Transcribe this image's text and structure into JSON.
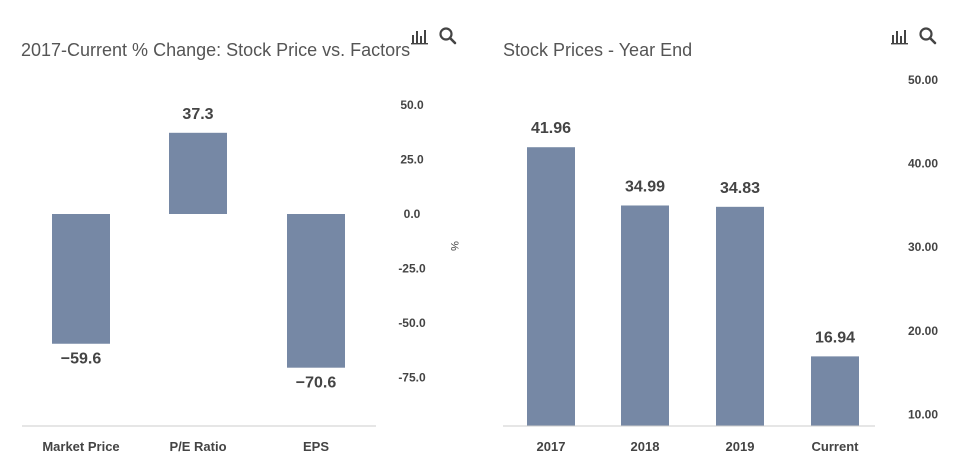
{
  "colors": {
    "bar": "#7688a5",
    "title": "#555555",
    "tick": "#444444",
    "axis": "#cccccc",
    "label": "#444444"
  },
  "toolbar": {
    "left": [
      "bar-chart-icon",
      "search-icon"
    ],
    "right": [
      "bar-chart-icon",
      "search-icon"
    ]
  },
  "chart_data": [
    {
      "type": "bar",
      "title": "2017-Current % Change: Stock Price vs. Factors",
      "categories": [
        "Market Price",
        "P/E Ratio",
        "EPS"
      ],
      "values": [
        -59.6,
        37.3,
        -70.6
      ],
      "value_labels": [
        "−59.6",
        "37.3",
        "−70.6"
      ],
      "ytick_values": [
        50,
        25,
        0,
        -25,
        -50,
        -75
      ],
      "ytick_labels": [
        "50.0",
        "25.0",
        "0.0",
        "-25.0",
        "-50.0",
        "-75.0"
      ],
      "ylabel": "%",
      "xlabel": "",
      "y_axis_position": "right",
      "grid": false
    },
    {
      "type": "bar",
      "title": "Stock Prices - Year End",
      "categories": [
        "2017",
        "2018",
        "2019",
        "Current"
      ],
      "values": [
        41.96,
        34.99,
        34.83,
        16.94
      ],
      "value_labels": [
        "41.96",
        "34.99",
        "34.83",
        "16.94"
      ],
      "ytick_values": [
        50,
        40,
        30,
        20,
        10
      ],
      "ytick_labels": [
        "50.00",
        "40.00",
        "30.00",
        "20.00",
        "10.00"
      ],
      "ylabel": "",
      "xlabel": "",
      "y_axis_position": "right",
      "grid": false
    }
  ]
}
